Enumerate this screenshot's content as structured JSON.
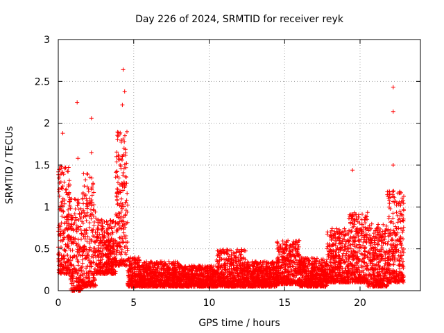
{
  "chart_data": {
    "type": "scatter",
    "title": "Day 226 of 2024, SRMTID for receiver reyk",
    "xlabel": "GPS time / hours",
    "ylabel": "SRMTID / TECUs",
    "xlim": [
      0,
      24
    ],
    "ylim": [
      0,
      3
    ],
    "xticks": [
      0,
      5,
      10,
      15,
      20
    ],
    "xtick_labels": [
      "0",
      "5",
      "10",
      "15",
      "20"
    ],
    "yticks": [
      0,
      0.5,
      1,
      1.5,
      2,
      2.5,
      3
    ],
    "ytick_labels": [
      "0",
      "0.5",
      "1",
      "1.5",
      "2",
      "2.5",
      "3"
    ],
    "grid": true,
    "marker": "plus",
    "marker_color": "#ff0000",
    "series_name": "SRMTID",
    "notable_points": [
      {
        "x": 1.25,
        "y": 2.25
      },
      {
        "x": 2.2,
        "y": 2.06
      },
      {
        "x": 2.2,
        "y": 1.65
      },
      {
        "x": 4.3,
        "y": 2.64
      },
      {
        "x": 4.4,
        "y": 2.38
      },
      {
        "x": 4.25,
        "y": 2.22
      },
      {
        "x": 0.3,
        "y": 1.88
      },
      {
        "x": 19.5,
        "y": 1.44
      },
      {
        "x": 22.2,
        "y": 2.43
      },
      {
        "x": 22.2,
        "y": 2.14
      },
      {
        "x": 22.2,
        "y": 1.5
      },
      {
        "x": 1.3,
        "y": 1.58
      }
    ],
    "envelope": [
      {
        "x0": 0.0,
        "x1": 0.8,
        "ymin": 0.2,
        "ymax": 1.5
      },
      {
        "x0": 0.8,
        "x1": 1.6,
        "ymin": 0.0,
        "ymax": 1.1
      },
      {
        "x0": 1.6,
        "x1": 2.5,
        "ymin": 0.05,
        "ymax": 1.4
      },
      {
        "x0": 2.5,
        "x1": 3.8,
        "ymin": 0.2,
        "ymax": 0.85
      },
      {
        "x0": 3.8,
        "x1": 4.6,
        "ymin": 0.3,
        "ymax": 1.9
      },
      {
        "x0": 4.6,
        "x1": 5.5,
        "ymin": 0.05,
        "ymax": 0.4
      },
      {
        "x0": 5.5,
        "x1": 8.0,
        "ymin": 0.05,
        "ymax": 0.35
      },
      {
        "x0": 8.0,
        "x1": 10.5,
        "ymin": 0.05,
        "ymax": 0.3
      },
      {
        "x0": 10.5,
        "x1": 12.5,
        "ymin": 0.05,
        "ymax": 0.5
      },
      {
        "x0": 12.5,
        "x1": 14.5,
        "ymin": 0.05,
        "ymax": 0.35
      },
      {
        "x0": 14.5,
        "x1": 16.0,
        "ymin": 0.08,
        "ymax": 0.6
      },
      {
        "x0": 16.0,
        "x1": 17.8,
        "ymin": 0.05,
        "ymax": 0.4
      },
      {
        "x0": 17.8,
        "x1": 19.2,
        "ymin": 0.1,
        "ymax": 0.75
      },
      {
        "x0": 19.2,
        "x1": 20.5,
        "ymin": 0.1,
        "ymax": 0.95
      },
      {
        "x0": 20.5,
        "x1": 21.8,
        "ymin": 0.05,
        "ymax": 0.8
      },
      {
        "x0": 21.8,
        "x1": 22.9,
        "ymin": 0.1,
        "ymax": 1.2
      }
    ]
  }
}
